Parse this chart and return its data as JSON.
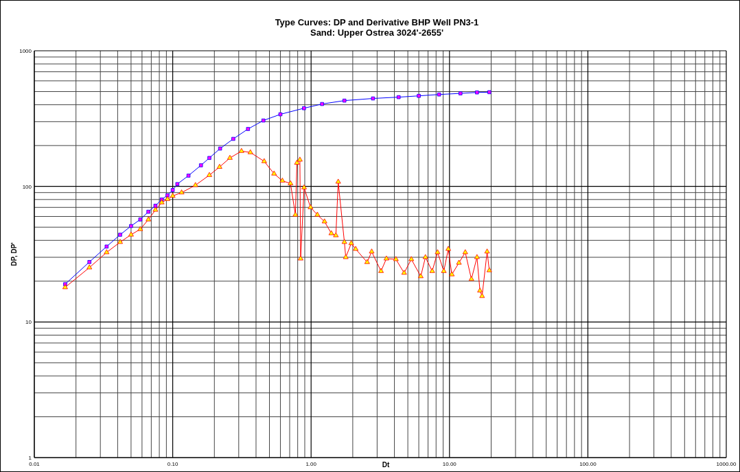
{
  "chart_data": {
    "type": "line",
    "title": "Type Curves: DP and Derivative BHP Well PN3-1",
    "subtitle": "Sand: Upper Ostrea 3024'-2655'",
    "xlabel": "Dt",
    "ylabel": "DP, DP'",
    "log": "xy",
    "grid": true,
    "line_style": "solid",
    "xlim": [
      0.01,
      1000
    ],
    "xticks": [
      {
        "value": 0.01,
        "label": "0.01"
      },
      {
        "value": 0.1,
        "label": "0.10"
      },
      {
        "value": 1,
        "label": "1.00"
      },
      {
        "value": 10,
        "label": "10.00"
      },
      {
        "value": 100,
        "label": "100.00"
      },
      {
        "value": 1000,
        "label": "1000.00"
      }
    ],
    "ylim": [
      1,
      1000
    ],
    "yticks": [
      1,
      10,
      100,
      1000
    ],
    "series": [
      {
        "color": "#0000ff",
        "marker": "square",
        "x": [
          0.0167,
          0.025,
          0.0333,
          0.0417,
          0.05,
          0.0583,
          0.0667,
          0.075,
          0.0833,
          0.0917,
          0.1,
          0.108,
          0.13,
          0.16,
          0.184,
          0.22,
          0.274,
          0.35,
          0.452,
          0.6,
          0.888,
          1.2,
          1.74,
          2.8,
          4.29,
          6,
          8.41,
          12,
          15.8,
          19.4
        ],
        "values": [
          19,
          27.7,
          36,
          44,
          51,
          57,
          65,
          72,
          80,
          86,
          94,
          104,
          120,
          143,
          162,
          190,
          224,
          265,
          306,
          340,
          377,
          405,
          429,
          445,
          455,
          465,
          476,
          485,
          493,
          495
        ]
      },
      {
        "color": "#ff0000",
        "marker": "triangle",
        "x": [
          0.0167,
          0.025,
          0.0333,
          0.0417,
          0.05,
          0.0583,
          0.0667,
          0.075,
          0.0833,
          0.0917,
          0.1,
          0.116,
          0.146,
          0.184,
          0.218,
          0.259,
          0.314,
          0.364,
          0.458,
          0.54,
          0.62,
          0.71,
          0.77,
          0.79,
          0.83,
          0.84,
          0.89,
          0.99,
          1.11,
          1.25,
          1.4,
          1.51,
          1.57,
          1.74,
          1.78,
          1.95,
          2.1,
          2.54,
          2.74,
          3.2,
          3.5,
          4.1,
          4.7,
          5.3,
          6.2,
          6.7,
          7.5,
          8.2,
          9.1,
          9.8,
          10.4,
          11.7,
          13,
          14.4,
          15.8,
          16.6,
          17.2,
          18.7,
          19.4
        ],
        "values": [
          18,
          25.2,
          32.6,
          38.8,
          44,
          48.3,
          56.9,
          67,
          76,
          80.5,
          85,
          90,
          102,
          121,
          139,
          162,
          182,
          178,
          153,
          124,
          110,
          105,
          61.7,
          149,
          157,
          29.3,
          98,
          70,
          61.7,
          55,
          45,
          43.5,
          108,
          38.8,
          30,
          38,
          34.5,
          27.6,
          33,
          23.7,
          29.3,
          29,
          23,
          29,
          21.7,
          30,
          23.7,
          32.6,
          23.7,
          34.5,
          22.4,
          27.3,
          32.6,
          20.7,
          30,
          17,
          15.5,
          33,
          24
        ]
      }
    ]
  }
}
